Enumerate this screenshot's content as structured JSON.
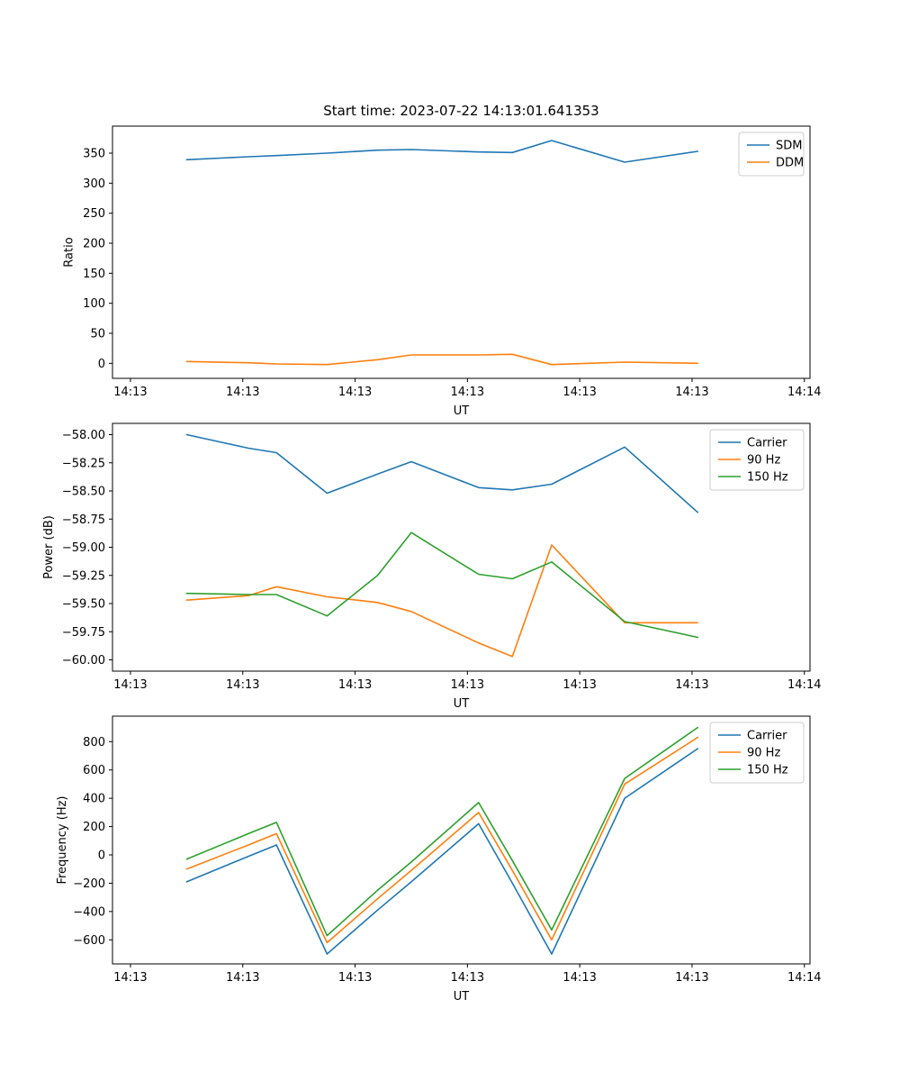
{
  "figure": {
    "title": "Start time: 2023-07-22 14:13:01.641353",
    "background": "#ffffff"
  },
  "colors": {
    "blue": "#1f77b4",
    "orange": "#ff7f0e",
    "green": "#2ca02c",
    "legend_border": "#cccccc"
  },
  "chart_data": [
    {
      "name": "ratio",
      "type": "line",
      "title": "Start time: 2023-07-22 14:13:01.641353",
      "xlabel": "UT",
      "ylabel": "Ratio",
      "xlim": [
        -0.16,
        6.05
      ],
      "ylim": [
        -25,
        395
      ],
      "grid": false,
      "legend_position": "upper right",
      "x_tick_positions": [
        0,
        1,
        2,
        3,
        4,
        5,
        6
      ],
      "x_tick_labels": [
        "14:13",
        "14:13",
        "14:13",
        "14:13",
        "14:13",
        "14:13",
        "14:14"
      ],
      "y_tick_positions": [
        0,
        50,
        100,
        150,
        200,
        250,
        300,
        350
      ],
      "y_tick_labels": [
        "0",
        "50",
        "100",
        "150",
        "200",
        "250",
        "300",
        "350"
      ],
      "x": [
        0.5,
        1.05,
        1.3,
        1.75,
        2.2,
        2.5,
        3.1,
        3.4,
        3.75,
        4.4,
        5.05
      ],
      "series": [
        {
          "name": "SDM",
          "color": "#1f77b4",
          "values": [
            339,
            344,
            346,
            350,
            355,
            356,
            352,
            351,
            371,
            335,
            353
          ]
        },
        {
          "name": "DDM",
          "color": "#ff7f0e",
          "values": [
            3,
            1,
            -1,
            -2,
            6,
            14,
            14,
            15,
            -2,
            2,
            0
          ]
        }
      ]
    },
    {
      "name": "power",
      "type": "line",
      "title": "",
      "xlabel": "UT",
      "ylabel": "Power (dB)",
      "xlim": [
        -0.16,
        6.05
      ],
      "ylim": [
        -60.1,
        -57.9
      ],
      "grid": false,
      "legend_position": "upper right",
      "x_tick_positions": [
        0,
        1,
        2,
        3,
        4,
        5,
        6
      ],
      "x_tick_labels": [
        "14:13",
        "14:13",
        "14:13",
        "14:13",
        "14:13",
        "14:13",
        "14:14"
      ],
      "y_tick_positions": [
        -58.0,
        -58.25,
        -58.5,
        -58.75,
        -59.0,
        -59.25,
        -59.5,
        -59.75,
        -60.0
      ],
      "y_tick_labels": [
        "−58.00",
        "−58.25",
        "−58.50",
        "−58.75",
        "−59.00",
        "−59.25",
        "−59.50",
        "−59.75",
        "−60.00"
      ],
      "x": [
        0.5,
        1.05,
        1.3,
        1.75,
        2.2,
        2.5,
        3.1,
        3.4,
        3.75,
        4.4,
        5.05
      ],
      "series": [
        {
          "name": "Carrier",
          "color": "#1f77b4",
          "values": [
            -58.0,
            -58.12,
            -58.16,
            -58.52,
            -58.35,
            -58.24,
            -58.47,
            -58.49,
            -58.44,
            -58.11,
            -58.69
          ]
        },
        {
          "name": "90 Hz",
          "color": "#ff7f0e",
          "values": [
            -59.47,
            -59.43,
            -59.35,
            -59.44,
            -59.49,
            -59.57,
            -59.85,
            -59.97,
            -58.98,
            -59.67,
            -59.67
          ]
        },
        {
          "name": "150 Hz",
          "color": "#2ca02c",
          "values": [
            -59.41,
            -59.42,
            -59.42,
            -59.61,
            -59.25,
            -58.87,
            -59.24,
            -59.28,
            -59.13,
            -59.66,
            -59.8
          ]
        }
      ]
    },
    {
      "name": "frequency",
      "type": "line",
      "title": "",
      "xlabel": "UT",
      "ylabel": "Frequency (Hz)",
      "xlim": [
        -0.16,
        6.05
      ],
      "ylim": [
        -770,
        980
      ],
      "grid": false,
      "legend_position": "upper right",
      "x_tick_positions": [
        0,
        1,
        2,
        3,
        4,
        5,
        6
      ],
      "x_tick_labels": [
        "14:13",
        "14:13",
        "14:13",
        "14:13",
        "14:13",
        "14:13",
        "14:14"
      ],
      "y_tick_positions": [
        -600,
        -400,
        -200,
        0,
        200,
        400,
        600,
        800
      ],
      "y_tick_labels": [
        "−600",
        "−400",
        "−200",
        "0",
        "200",
        "400",
        "600",
        "800"
      ],
      "x": [
        0.5,
        1.05,
        1.3,
        1.75,
        2.2,
        2.5,
        3.1,
        3.4,
        3.75,
        4.4,
        5.05
      ],
      "series": [
        {
          "name": "Carrier",
          "color": "#1f77b4",
          "values": [
            -190,
            -10,
            70,
            -700,
            -390,
            -190,
            220,
            -200,
            -700,
            400,
            750
          ]
        },
        {
          "name": "90 Hz",
          "color": "#ff7f0e",
          "values": [
            -100,
            70,
            150,
            -620,
            -310,
            -110,
            300,
            -110,
            -600,
            500,
            830
          ]
        },
        {
          "name": "150 Hz",
          "color": "#2ca02c",
          "values": [
            -30,
            150,
            230,
            -570,
            -250,
            -50,
            370,
            -40,
            -530,
            540,
            900
          ]
        }
      ]
    }
  ]
}
